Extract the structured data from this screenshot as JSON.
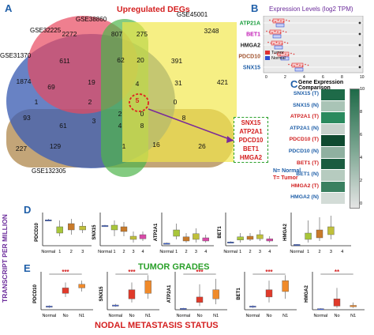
{
  "panels": {
    "A": "A",
    "B": "B",
    "C": "C",
    "D": "D",
    "E": "E"
  },
  "venn": {
    "title": "Upregulated DEGs",
    "sets": [
      "GSE32225",
      "GSE38860",
      "GSE45001",
      "GSE31370",
      "GSE132305"
    ],
    "counts": [
      "2272",
      "807",
      "275",
      "3248",
      "611",
      "62",
      "20",
      "391",
      "1874",
      "69",
      "19",
      "4",
      "31",
      "421",
      "1",
      "2",
      "5",
      "0",
      "93",
      "2",
      "0",
      "8",
      "3",
      "61",
      "4",
      "8",
      "227",
      "129",
      "1",
      "16",
      "26"
    ],
    "highlight_genes": [
      "SNX15",
      "ATP2A1",
      "PDCD10",
      "BET1",
      "HMGA2"
    ]
  },
  "expression": {
    "title": "Expression Levels (log2 TPM)",
    "genes": [
      "ATP21A",
      "BET1",
      "HMGA2",
      "PDCD10",
      "SNX15"
    ],
    "gene_colors": [
      "#1b9e3e",
      "#c21ab5",
      "#222222",
      "#a0522d",
      "#1f5fa8"
    ],
    "legend": [
      "Tumor",
      "Normal"
    ],
    "tumor_color": "#e03030",
    "normal_color": "#3050d0",
    "axis_ticks": [
      "0",
      "2",
      "4",
      "6",
      "8",
      "10"
    ]
  },
  "comparison": {
    "title": "Gene Expression Comparison",
    "rows": [
      "SNX15 (T)",
      "SNX15 (N)",
      "ATP2A1 (T)",
      "ATP2A1 (N)",
      "PDCD10 (T)",
      "PDCD10 (N)",
      "BET1 (T)",
      "BET1 (N)",
      "HMGA2 (T)",
      "HMGA2 (N)"
    ],
    "row_colors": [
      "#1f5fa8",
      "#1f5fa8",
      "#d02020",
      "#1f5fa8",
      "#d02020",
      "#1f5fa8",
      "#d02020",
      "#1f5fa8",
      "#d02020",
      "#1f5fa8"
    ],
    "heat_colors": [
      "#1e6a48",
      "#a9c4b6",
      "#2a8a5e",
      "#c7d2cc",
      "#0f4a30",
      "#8fb0a0",
      "#1b5c40",
      "#b6cbbf",
      "#3a8060",
      "#d3dcd7"
    ],
    "colorbar_ticks": [
      "0",
      "2",
      "4",
      "6",
      "8",
      "10"
    ],
    "legend_n": "N= Normal",
    "legend_t": "T= Tumor"
  },
  "y_axis_label": "TRANSCRIPT PER MILLION",
  "tumor_grades": {
    "title": "TUMOR GRADES",
    "genes": [
      "PDCD10",
      "SNX15",
      "ATP2A1",
      "BET1",
      "HMGA2"
    ],
    "categories": [
      "Normal",
      "1",
      "2",
      "3",
      "4"
    ]
  },
  "nodal": {
    "title": "NODAL METASTASIS STATUS",
    "genes": [
      "PDCD10",
      "SNX15",
      "ATP2A1",
      "BET1",
      "HMGA2"
    ],
    "categories": [
      "Normal",
      "No",
      "N1"
    ],
    "significance": [
      "***",
      "***",
      "***",
      "***",
      "**"
    ]
  }
}
